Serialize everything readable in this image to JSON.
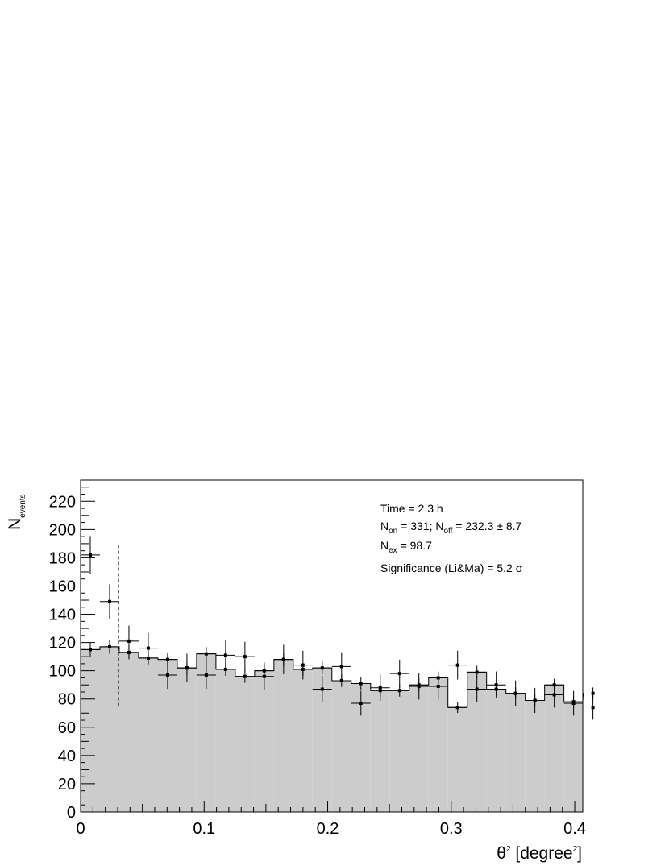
{
  "chart_data": {
    "type": "bar",
    "xlabel": {
      "base": "θ",
      "sup1": "2",
      "rest": " [degree",
      "sup2": "2",
      "end": "]"
    },
    "ylabel": {
      "base": "N",
      "sub": "events"
    },
    "xlim": [
      0,
      0.4065
    ],
    "ylim": [
      0,
      235
    ],
    "xticks": [
      {
        "value": 0,
        "label": "0"
      },
      {
        "value": 0.1,
        "label": "0.1"
      },
      {
        "value": 0.2,
        "label": "0.2"
      },
      {
        "value": 0.3,
        "label": "0.3"
      },
      {
        "value": 0.4,
        "label": "0.4"
      }
    ],
    "yticks": [
      {
        "value": 0,
        "label": "0"
      },
      {
        "value": 20,
        "label": "20"
      },
      {
        "value": 40,
        "label": "40"
      },
      {
        "value": 60,
        "label": "60"
      },
      {
        "value": 80,
        "label": "80"
      },
      {
        "value": 100,
        "label": "100"
      },
      {
        "value": 120,
        "label": "120"
      },
      {
        "value": 140,
        "label": "140"
      },
      {
        "value": 160,
        "label": "160"
      },
      {
        "value": 180,
        "label": "180"
      },
      {
        "value": 200,
        "label": "200"
      },
      {
        "value": 220,
        "label": "220"
      }
    ],
    "bin_width": 0.01565,
    "background_histogram": [
      115,
      117,
      113,
      109,
      108,
      102,
      112,
      101,
      96,
      100,
      108,
      101,
      102,
      93,
      91,
      86,
      86,
      90,
      95,
      74,
      99,
      87,
      84,
      79,
      90,
      78,
      84
    ],
    "on_points": [
      182,
      149,
      121,
      116,
      97,
      102,
      97,
      111,
      110,
      96,
      108,
      104,
      87,
      103,
      77,
      88,
      98,
      89,
      89,
      104,
      87,
      90,
      84,
      79,
      83,
      77,
      74
    ],
    "on_errors": [
      13.5,
      12.2,
      11.0,
      10.8,
      9.8,
      10.1,
      9.8,
      10.5,
      10.5,
      9.8,
      10.4,
      10.2,
      9.3,
      10.1,
      8.8,
      9.4,
      9.9,
      9.4,
      9.4,
      10.2,
      9.3,
      9.5,
      9.2,
      8.9,
      9.1,
      8.8,
      8.6
    ],
    "off_points": [
      115,
      117,
      113,
      109,
      108,
      102,
      112,
      101,
      96,
      100,
      108,
      101,
      102,
      93,
      91,
      86,
      86,
      90,
      95,
      74,
      99,
      87,
      84,
      79,
      90,
      78,
      84
    ],
    "off_errors": [
      4.9,
      5.0,
      4.9,
      4.8,
      4.7,
      4.6,
      4.8,
      4.6,
      4.5,
      4.6,
      4.7,
      4.6,
      4.6,
      4.4,
      4.4,
      4.3,
      4.3,
      4.4,
      4.5,
      3.9,
      4.5,
      4.3,
      4.2,
      4.1,
      4.4,
      4.0,
      4.2
    ],
    "cut_line": {
      "x": 0.0307,
      "y_low": 75,
      "y_high": 190
    },
    "grid": false,
    "legend": "none",
    "colors": {
      "fill": "#cccccc",
      "line": "#000000"
    }
  },
  "stats": {
    "time": "Time = 2.3 h",
    "non_N": "N",
    "non_sub": "on",
    "non_mid": " = 331; N",
    "noff_sub": "off",
    "noff_val": " = 232.3 ±  8.7",
    "nex_N": "N",
    "nex_sub": "ex",
    "nex_val": " = 98.7",
    "significance": "Significance (Li&Ma) = 5.2 σ"
  }
}
